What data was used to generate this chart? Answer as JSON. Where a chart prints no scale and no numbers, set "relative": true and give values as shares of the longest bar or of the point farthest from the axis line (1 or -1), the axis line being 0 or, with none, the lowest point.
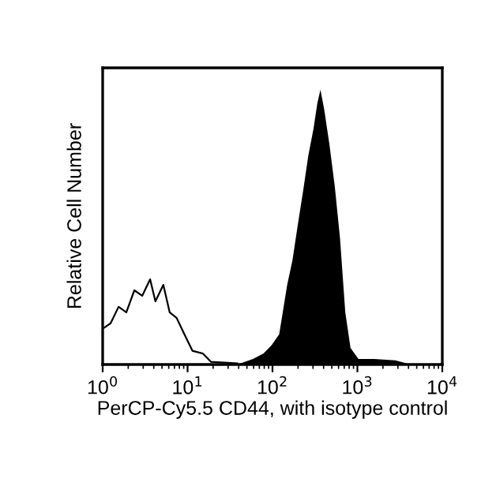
{
  "chart_data": {
    "type": "area",
    "relative": true,
    "log": "x",
    "xlabel": "PerCP-Cy5.5 CD44, with isotype control",
    "ylabel": "Relative Cell Number",
    "xlim": [
      1,
      10000
    ],
    "xticks": [
      {
        "value": 1,
        "label": "10$^{0}$"
      },
      {
        "value": 10,
        "label": "10$^{1}$"
      },
      {
        "value": 100,
        "label": "10$^{2}$"
      },
      {
        "value": 1000,
        "label": "10$^{3}$"
      },
      {
        "value": 10000,
        "label": "10$^{4}$"
      }
    ],
    "tick_labels": "x",
    "grid": false,
    "series": [
      {
        "type": "line",
        "color": "#000000",
        "x": [
          1,
          1.24,
          1.54,
          1.9,
          2.36,
          2.92,
          3.62,
          4.18,
          5.18,
          6.15,
          7.41,
          9.18,
          11.4,
          15.1,
          18.8,
          38.4
        ],
        "values": [
          0.13,
          0.15,
          0.21,
          0.19,
          0.27,
          0.25,
          0.31,
          0.23,
          0.29,
          0.19,
          0.17,
          0.11,
          0.05,
          0.04,
          0.01,
          0.004
        ]
      },
      {
        "color": "#000000",
        "x": [
          38.4,
          58.9,
          78.4,
          97.2,
          120,
          149,
          172,
          199,
          229,
          264,
          305,
          337,
          367,
          406,
          469,
          541,
          624,
          720,
          830,
          1028,
          1581,
          2800,
          4300
        ],
        "values": [
          0,
          0.02,
          0.04,
          0.07,
          0.11,
          0.29,
          0.38,
          0.51,
          0.63,
          0.76,
          0.86,
          0.95,
          1.0,
          0.93,
          0.8,
          0.65,
          0.46,
          0.19,
          0.06,
          0.02,
          0.02,
          0.015,
          0
        ]
      }
    ]
  }
}
